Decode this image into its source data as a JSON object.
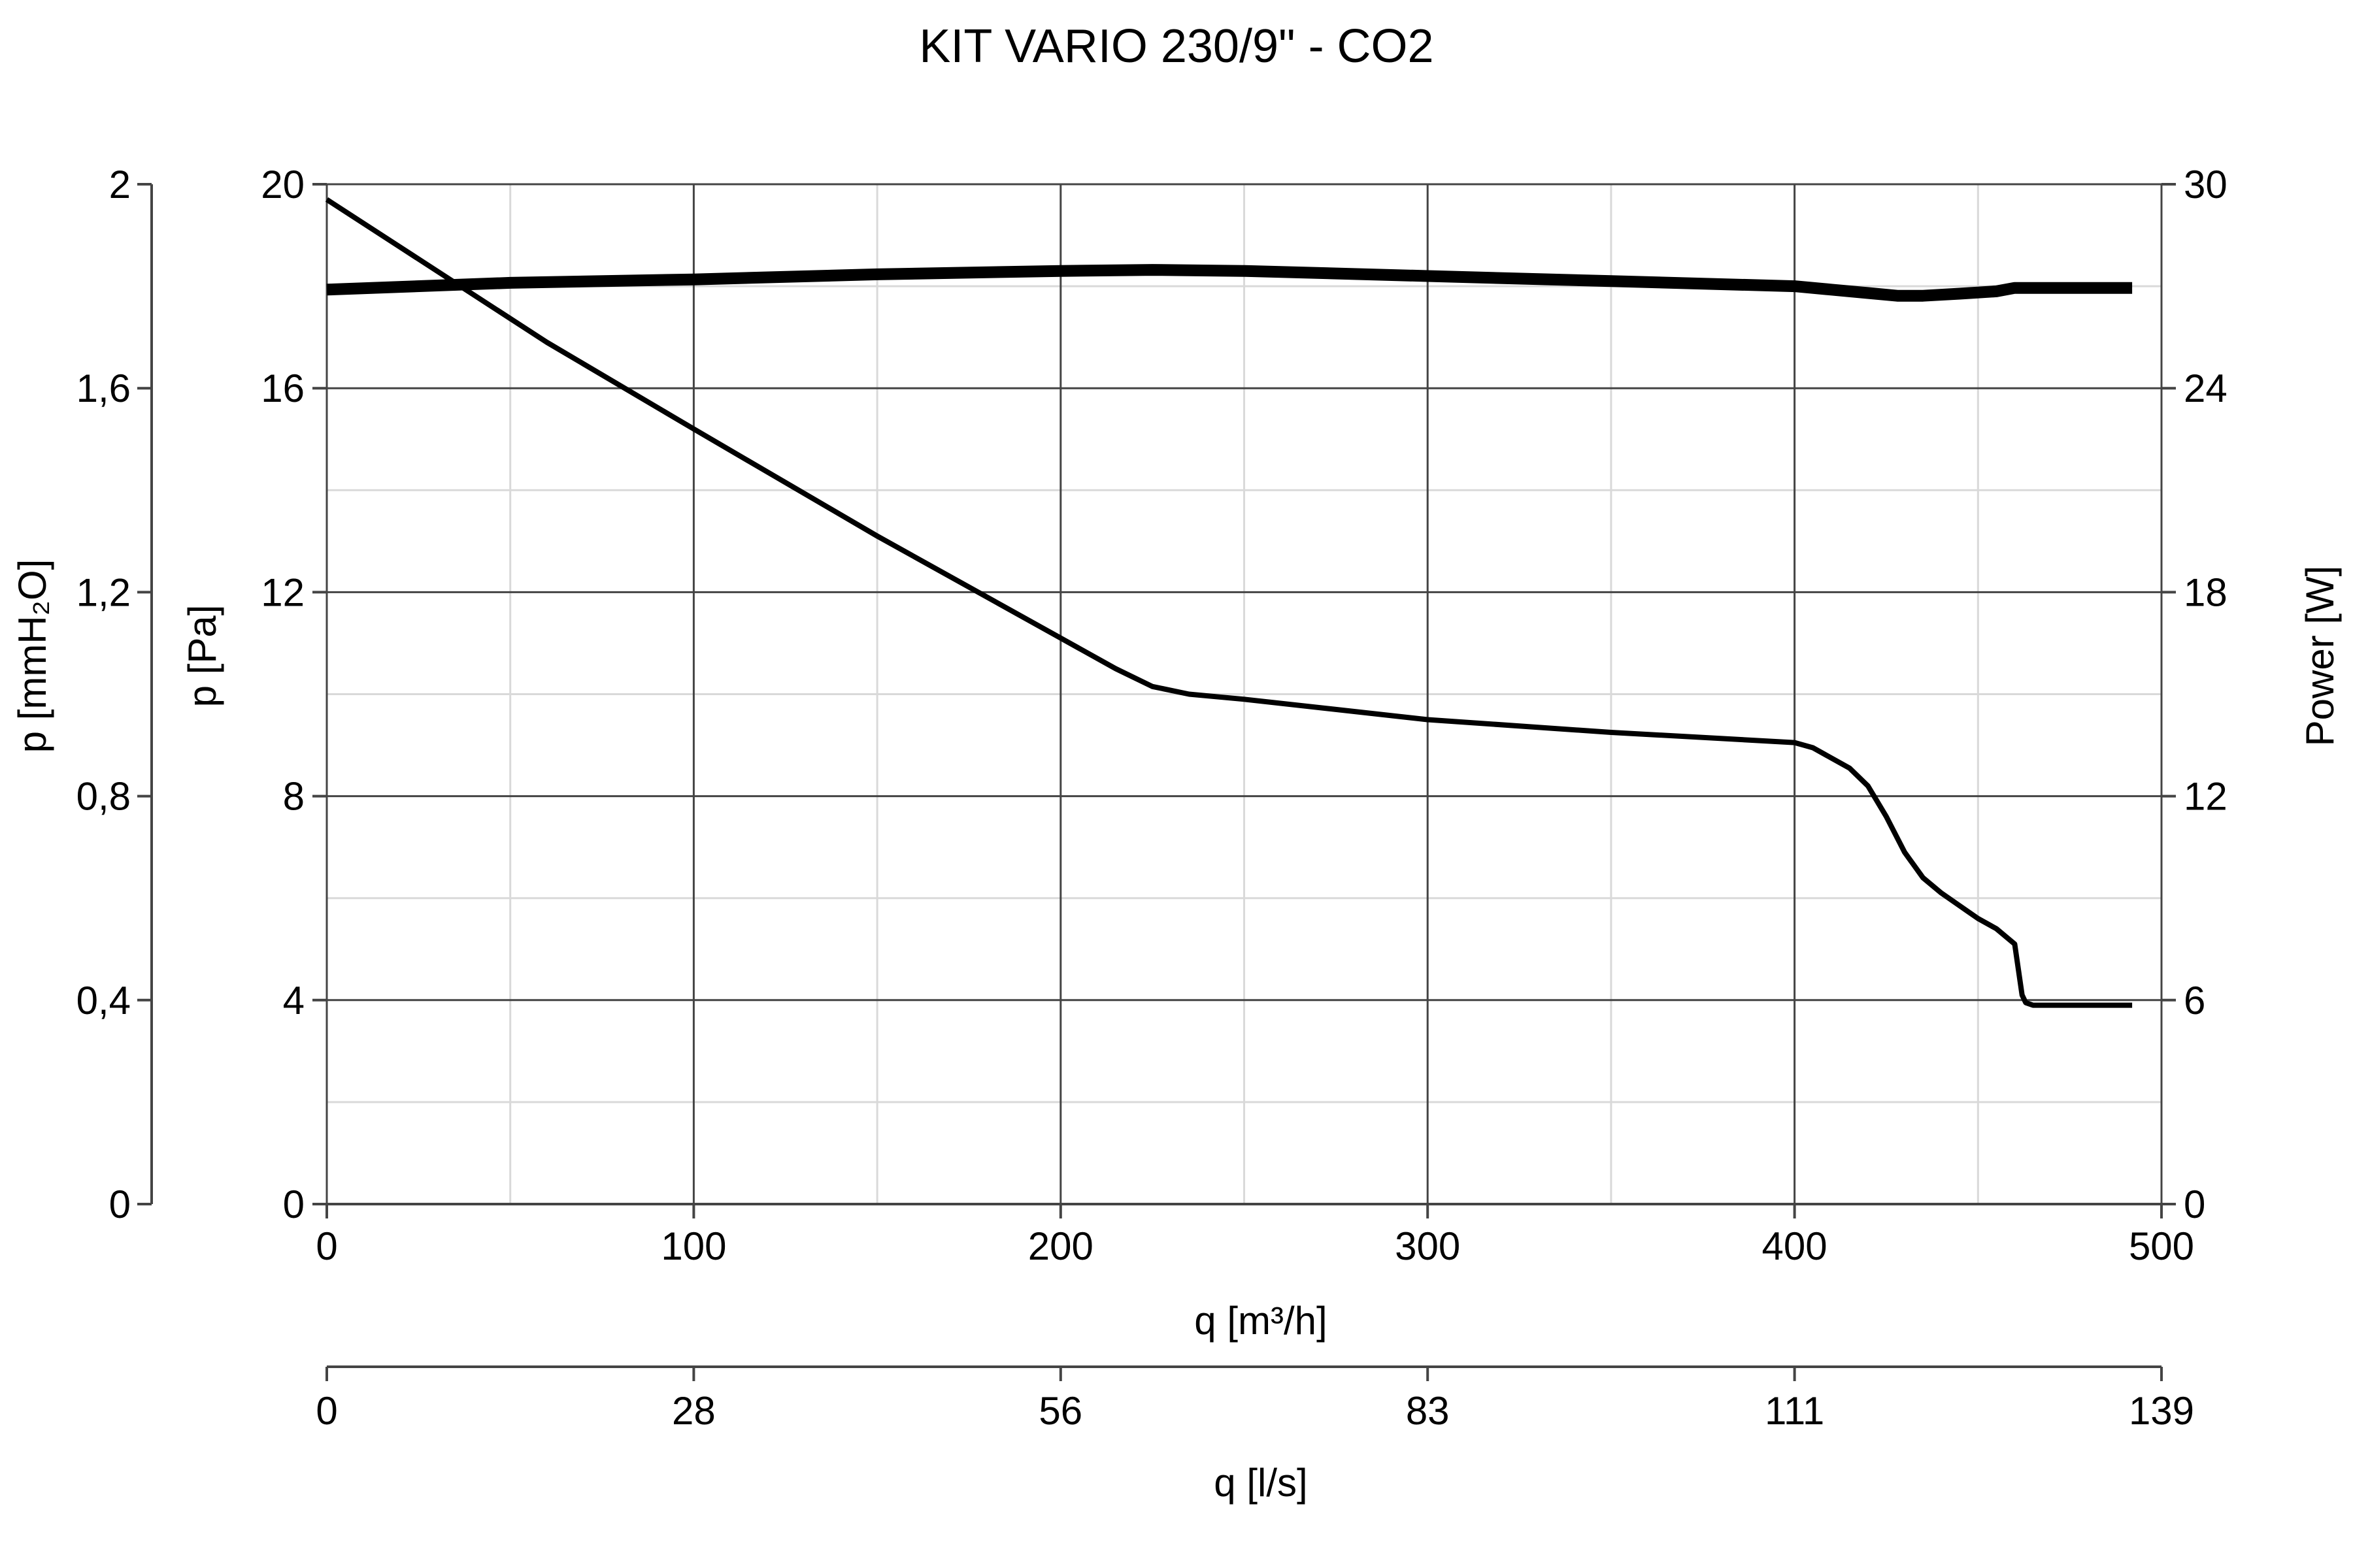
{
  "chart_data": {
    "type": "line",
    "title": "KIT VARIO 230/9\" - CO2",
    "xlabel": "q [m³/h]",
    "x2label": "q [l/s]",
    "ylabel": "p [Pa]",
    "y2label": "p [mmH₂O]",
    "y3label": "Power [W]",
    "xlim": [
      0,
      500
    ],
    "ylim": [
      0,
      20
    ],
    "y3lim": [
      0,
      30
    ],
    "grid": true,
    "x_ticks": [
      0,
      100,
      200,
      300,
      400,
      500
    ],
    "x_tick_labels": [
      "0",
      "100",
      "200",
      "300",
      "400",
      "500"
    ],
    "x2_tick_labels": [
      "0",
      "28",
      "56",
      "83",
      "111",
      "139"
    ],
    "y_ticks": [
      0,
      4,
      8,
      12,
      16,
      20
    ],
    "y_tick_labels": [
      "0",
      "4",
      "8",
      "12",
      "16",
      "20"
    ],
    "y2_tick_labels": [
      "0",
      "0,4",
      "0,8",
      "1,2",
      "1,6",
      "2"
    ],
    "y3_tick_labels": [
      "0",
      "6",
      "12",
      "18",
      "24",
      "30"
    ],
    "series": [
      {
        "axis": "pressure",
        "x": [
          0,
          30,
          60,
          100,
          150,
          200,
          215,
          225,
          235,
          250,
          300,
          350,
          400,
          405,
          410,
          415,
          420,
          425,
          430,
          435,
          440,
          445,
          450,
          455,
          460,
          462,
          463,
          465,
          470,
          475,
          480,
          486,
          492
        ],
        "y": [
          19.7,
          18.3,
          16.9,
          15.2,
          13.1,
          11.1,
          10.5,
          10.15,
          10.0,
          9.9,
          9.5,
          9.25,
          9.05,
          8.95,
          8.75,
          8.55,
          8.2,
          7.6,
          6.9,
          6.4,
          6.1,
          5.85,
          5.6,
          5.4,
          5.1,
          4.1,
          3.95,
          3.9,
          3.9,
          3.9,
          3.9,
          3.9,
          3.9
        ]
      },
      {
        "axis": "power",
        "x": [
          0,
          50,
          100,
          150,
          200,
          225,
          250,
          300,
          350,
          400,
          410,
          420,
          428,
          435,
          445,
          455,
          460,
          470,
          480,
          492
        ],
        "y": [
          26.9,
          27.1,
          27.2,
          27.35,
          27.45,
          27.48,
          27.45,
          27.3,
          27.15,
          27.0,
          26.9,
          26.8,
          26.72,
          26.72,
          26.78,
          26.85,
          26.95,
          26.95,
          26.95,
          26.95
        ]
      }
    ]
  }
}
